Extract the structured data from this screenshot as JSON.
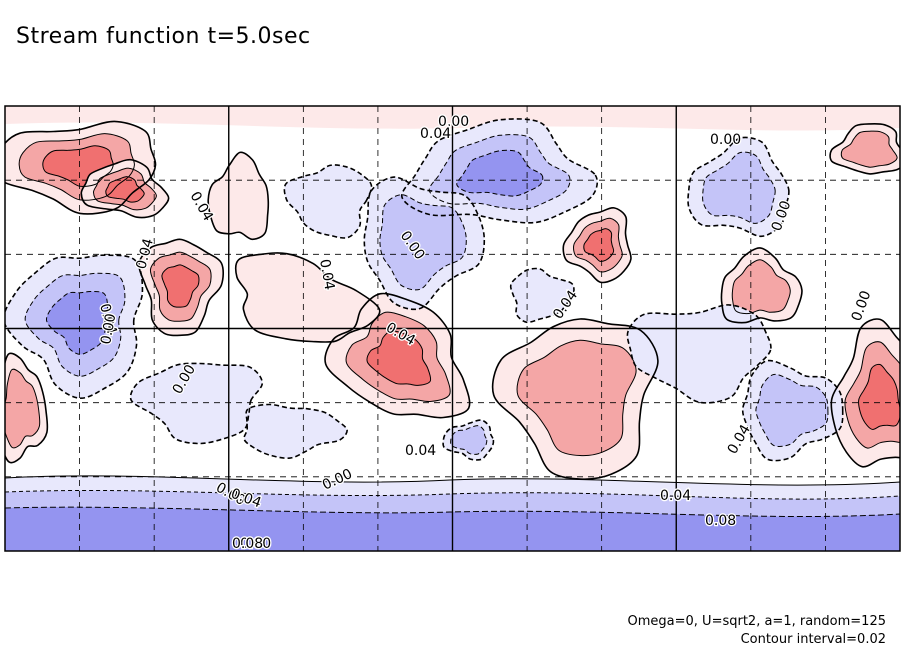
{
  "chart_data": {
    "type": "heatmap",
    "title": "Stream function t=5.0sec",
    "notes": [
      "Omega=0, U=sqrt2, a=1, random=125",
      "Contour interval=0.02"
    ],
    "contour_labels": [
      "0.00",
      "0.04",
      "0.04",
      "0.04",
      "0.04",
      "0.00",
      "0.04",
      "0.00",
      "0.04",
      "0.04",
      "0.00",
      "0.04",
      "0.00",
      "0.00",
      "0.00",
      "0.00",
      "0.04",
      "0.00",
      "0.04",
      "0.08",
      "0.00",
      "0.04",
      "0.08"
    ],
    "colors": {
      "positive_strong": "#f07070",
      "positive_mid": "#f4a6a6",
      "positive_weak": "#fde9e9",
      "negative_weak": "#e8e8fc",
      "negative_mid": "#c4c4f8",
      "negative_strong": "#9494f0",
      "line": "#000000"
    },
    "grid": true
  }
}
